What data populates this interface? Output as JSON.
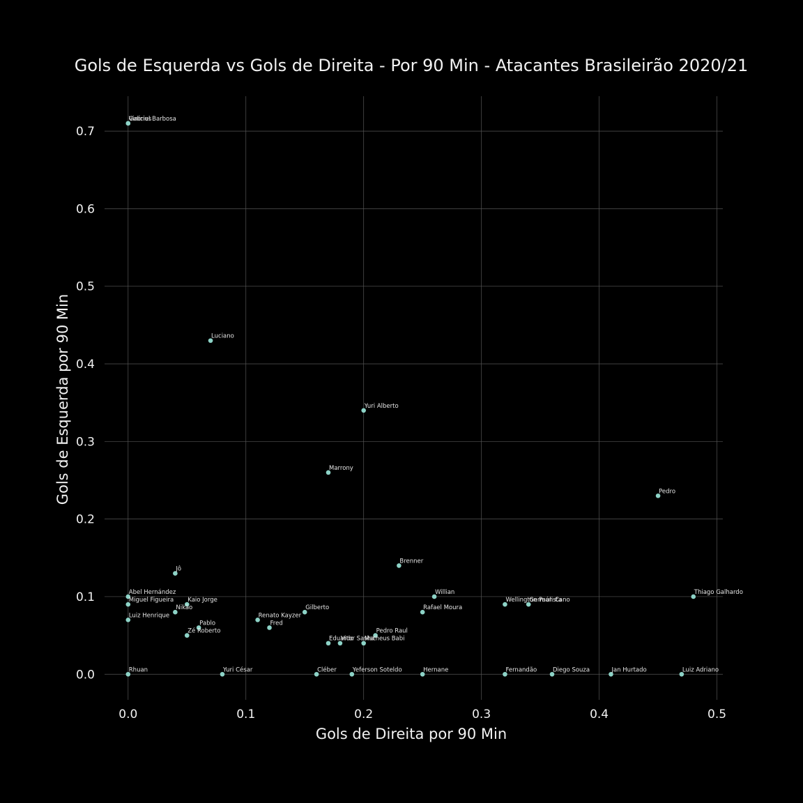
{
  "chart_data": {
    "type": "scatter",
    "title": "Gols de Esquerda vs Gols de Direita - Por 90 Min - Atacantes Brasileirão 2020/21",
    "xlabel": "Gols de Direita por 90 Min",
    "ylabel": "Gols de Esquerda por 90 Min",
    "xlim": [
      -0.02,
      0.505
    ],
    "ylim": [
      -0.033,
      0.745
    ],
    "xticks": [
      0.0,
      0.1,
      0.2,
      0.3,
      0.4,
      0.5
    ],
    "xtick_labels": [
      "0.0",
      "0.1",
      "0.2",
      "0.3",
      "0.4",
      "0.5"
    ],
    "yticks": [
      0.0,
      0.1,
      0.2,
      0.3,
      0.4,
      0.5,
      0.6,
      0.7
    ],
    "ytick_labels": [
      "0.0",
      "0.1",
      "0.2",
      "0.3",
      "0.4",
      "0.5",
      "0.6",
      "0.7"
    ],
    "grid": true,
    "background_color": "#000000",
    "point_color": "#8dd3c7",
    "points": [
      {
        "label": "Vinícius",
        "x": 0.0,
        "y": 0.71
      },
      {
        "label": "Gabriel Barbosa",
        "x": 0.0,
        "y": 0.71
      },
      {
        "label": "Luciano",
        "x": 0.07,
        "y": 0.43
      },
      {
        "label": "Yuri Alberto",
        "x": 0.2,
        "y": 0.34
      },
      {
        "label": "Marrony",
        "x": 0.17,
        "y": 0.26
      },
      {
        "label": "Pedro",
        "x": 0.45,
        "y": 0.23
      },
      {
        "label": "Brenner",
        "x": 0.23,
        "y": 0.14
      },
      {
        "label": "Jô",
        "x": 0.04,
        "y": 0.13
      },
      {
        "label": "Abel Hernández",
        "x": 0.0,
        "y": 0.1
      },
      {
        "label": "Willian",
        "x": 0.26,
        "y": 0.1
      },
      {
        "label": "Thiago Galhardo",
        "x": 0.48,
        "y": 0.1
      },
      {
        "label": "Miguel Figueira",
        "x": 0.0,
        "y": 0.09
      },
      {
        "label": "Kaio Jorge",
        "x": 0.05,
        "y": 0.09
      },
      {
        "label": "Wellington Paulista",
        "x": 0.32,
        "y": 0.09
      },
      {
        "label": "Germán Cano",
        "x": 0.34,
        "y": 0.09
      },
      {
        "label": "Nikão",
        "x": 0.04,
        "y": 0.08
      },
      {
        "label": "Gilberto",
        "x": 0.15,
        "y": 0.08
      },
      {
        "label": "Rafael Moura",
        "x": 0.25,
        "y": 0.08
      },
      {
        "label": "Luiz Henrique",
        "x": 0.0,
        "y": 0.07
      },
      {
        "label": "Renato Kayzer",
        "x": 0.11,
        "y": 0.07
      },
      {
        "label": "Pablo",
        "x": 0.06,
        "y": 0.06
      },
      {
        "label": "Fred",
        "x": 0.12,
        "y": 0.06
      },
      {
        "label": "Zé Roberto",
        "x": 0.05,
        "y": 0.05
      },
      {
        "label": "Pedro Raul",
        "x": 0.21,
        "y": 0.05
      },
      {
        "label": "Eduardo",
        "x": 0.17,
        "y": 0.04
      },
      {
        "label": "Vitor Sasha",
        "x": 0.18,
        "y": 0.04
      },
      {
        "label": "Matheus Babi",
        "x": 0.2,
        "y": 0.04
      },
      {
        "label": "Rhuan",
        "x": 0.0,
        "y": 0.0
      },
      {
        "label": "Yuri César",
        "x": 0.08,
        "y": 0.0
      },
      {
        "label": "Cléber",
        "x": 0.16,
        "y": 0.0
      },
      {
        "label": "Yeferson Soteldo",
        "x": 0.19,
        "y": 0.0
      },
      {
        "label": "Hernane",
        "x": 0.25,
        "y": 0.0
      },
      {
        "label": "Fernandão",
        "x": 0.32,
        "y": 0.0
      },
      {
        "label": "Diego Souza",
        "x": 0.36,
        "y": 0.0
      },
      {
        "label": "Jan Hurtado",
        "x": 0.41,
        "y": 0.0
      },
      {
        "label": "Luiz Adriano",
        "x": 0.47,
        "y": 0.0
      }
    ]
  }
}
